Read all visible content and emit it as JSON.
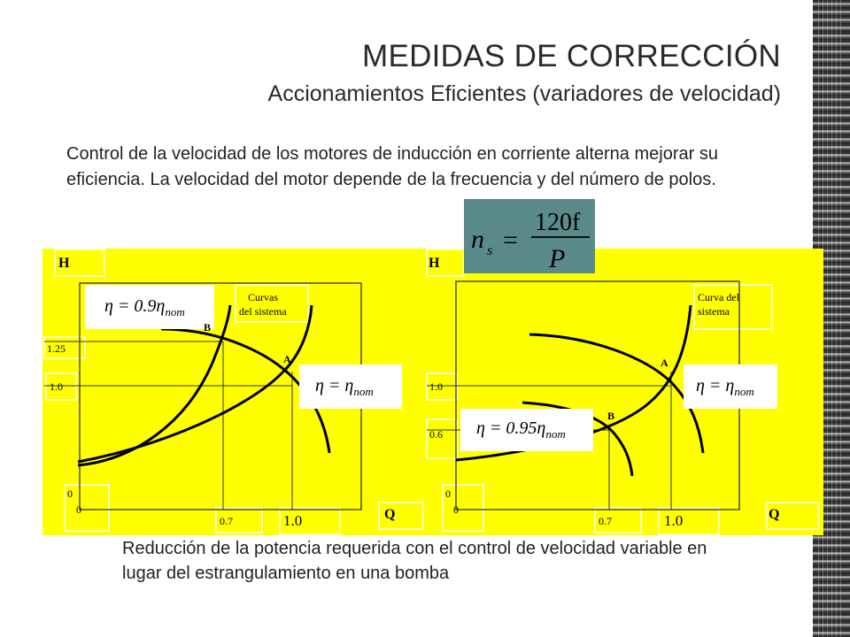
{
  "header": {
    "title": "MEDIDAS DE CORRECCIÓN",
    "subtitle": "Accionamientos Eficientes (variadores de velocidad)"
  },
  "intro": "Control de la velocidad de los motores de inducción en corriente alterna  mejorar su eficiencia. La velocidad del motor depende de la frecuencia y del  número de polos.",
  "formula": {
    "lhs": "n",
    "lhs_sub": "s",
    "eq": "=",
    "numerator": "120f",
    "denominator": "P"
  },
  "left_plot": {
    "y_axis": "H",
    "x_axis": "Q",
    "tick_125": "1.25",
    "tick_10": "1.0",
    "origin_y": "0",
    "origin_x": "0",
    "x_07": "0.7",
    "x_10": "1.0",
    "label_system_line1": "Curvas",
    "label_system_line2": "del sistema",
    "point_a": "A",
    "point_b": "B",
    "eta_b_main": "η = 0.9η",
    "eta_b_sub": "nom",
    "eta_a_main": "η = η",
    "eta_a_sub": "nom"
  },
  "right_plot": {
    "y_axis": "H",
    "x_axis": "Q",
    "tick_10": "1.0",
    "tick_06": "0.6",
    "origin_y": "0",
    "origin_x": "0",
    "x_07": "0.7",
    "x_10": "1.0",
    "label_system_line1": "Curva del",
    "label_system_line2": "sistema",
    "point_a": "A",
    "point_b": "B",
    "eta_b_main": "η = 0.95η",
    "eta_b_sub": "nom",
    "eta_a_main": "η = η",
    "eta_a_sub": "nom"
  },
  "caption": "Reducción de la potencia requerida con el control de velocidad variable en lugar del estrangulamiento en una bomba",
  "colors": {
    "panel": "#ffff00",
    "formula_bg": "#5b8a8a",
    "text": "#222222"
  }
}
